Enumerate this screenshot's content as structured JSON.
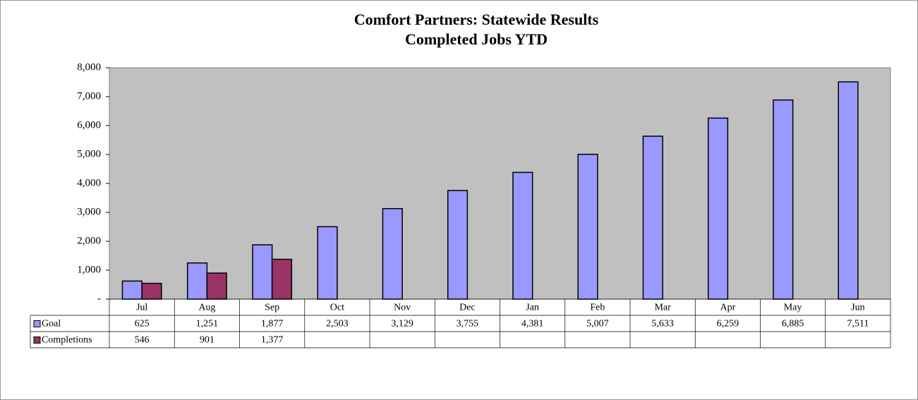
{
  "chart_data": {
    "type": "bar",
    "title_lines": [
      "Comfort Partners: Statewide Results",
      "Completed Jobs YTD"
    ],
    "categories": [
      "Jul",
      "Aug",
      "Sep",
      "Oct",
      "Nov",
      "Dec",
      "Jan",
      "Feb",
      "Mar",
      "Apr",
      "May",
      "Jun"
    ],
    "series": [
      {
        "name": "Goal",
        "color": "#9999ff",
        "values": [
          625,
          1251,
          1877,
          2503,
          3129,
          3755,
          4381,
          5007,
          5633,
          6259,
          6885,
          7511
        ],
        "value_labels": [
          "625",
          "1,251",
          "1,877",
          "2,503",
          "3,129",
          "3,755",
          "4,381",
          "5,007",
          "5,633",
          "6,259",
          "6,885",
          "7,511"
        ]
      },
      {
        "name": "Completions",
        "color": "#993366",
        "values": [
          546,
          901,
          1377,
          null,
          null,
          null,
          null,
          null,
          null,
          null,
          null,
          null
        ],
        "value_labels": [
          "546",
          "901",
          "1,377",
          null,
          null,
          null,
          null,
          null,
          null,
          null,
          null,
          null
        ]
      }
    ],
    "ylim": [
      0,
      8000
    ],
    "yticks": [
      {
        "value": 0,
        "label": "-"
      },
      {
        "value": 1000,
        "label": "1,000"
      },
      {
        "value": 2000,
        "label": "2,000"
      },
      {
        "value": 3000,
        "label": "3,000"
      },
      {
        "value": 4000,
        "label": "4,000"
      },
      {
        "value": 5000,
        "label": "5,000"
      },
      {
        "value": 6000,
        "label": "6,000"
      },
      {
        "value": 7000,
        "label": "7,000"
      },
      {
        "value": 8000,
        "label": "8,000"
      }
    ],
    "grid": false,
    "plot_background": "#c0c0c0"
  }
}
